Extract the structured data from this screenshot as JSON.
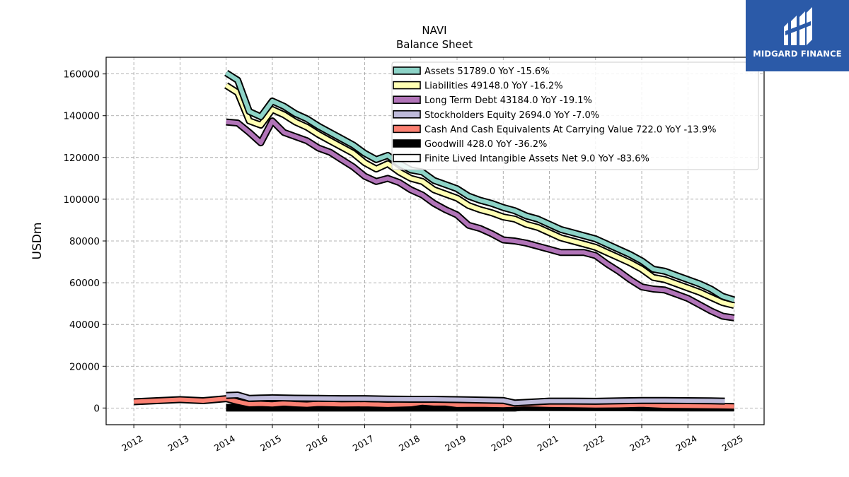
{
  "chart_data": {
    "type": "area",
    "title": "NAVI",
    "subtitle": "Balance  Sheet",
    "ylabel": "USDm",
    "xlabel": "",
    "ylim": [
      -8000,
      168000
    ],
    "xlim": [
      2011.4,
      2025.65
    ],
    "yticks": [
      0,
      20000,
      40000,
      60000,
      80000,
      100000,
      120000,
      140000,
      160000
    ],
    "ytick_labels": [
      "0",
      "20000",
      "40000",
      "60000",
      "80000",
      "100000",
      "120000",
      "140000",
      "160000"
    ],
    "xticks": [
      2012,
      2013,
      2014,
      2015,
      2016,
      2017,
      2018,
      2019,
      2020,
      2021,
      2022,
      2023,
      2024,
      2025
    ],
    "xtick_labels": [
      "2012",
      "2013",
      "2014",
      "2015",
      "2016",
      "2017",
      "2018",
      "2019",
      "2020",
      "2021",
      "2022",
      "2023",
      "2024",
      "2025"
    ],
    "grid": true,
    "legend_position": "top-right",
    "series": [
      {
        "name": "Assets",
        "legend": "Assets  51789.0 YoY -15.6%",
        "color": "#8dd3c7",
        "x": [
          2014.0,
          2014.25,
          2014.5,
          2014.75,
          2015.0,
          2015.25,
          2015.5,
          2015.75,
          2016.0,
          2016.25,
          2016.5,
          2016.75,
          2017.0,
          2017.25,
          2017.5,
          2017.75,
          2018.0,
          2018.25,
          2018.5,
          2018.75,
          2019.0,
          2019.25,
          2019.5,
          2019.75,
          2020.0,
          2020.25,
          2020.5,
          2020.75,
          2021.0,
          2021.25,
          2021.5,
          2021.75,
          2022.0,
          2022.25,
          2022.5,
          2022.75,
          2023.0,
          2023.25,
          2023.5,
          2023.75,
          2024.0,
          2024.25,
          2024.5,
          2024.75,
          2025.0
        ],
        "values": [
          160500,
          157000,
          142000,
          139500,
          147000,
          144500,
          141000,
          138500,
          135000,
          132000,
          129000,
          126000,
          122000,
          119000,
          121000,
          117000,
          114000,
          113000,
          109000,
          107000,
          105000,
          101500,
          99500,
          98000,
          96000,
          94500,
          92000,
          90500,
          88000,
          85500,
          84000,
          82500,
          81000,
          78500,
          76000,
          73500,
          70500,
          66500,
          65500,
          63500,
          61500,
          59500,
          57000,
          53500,
          51789
        ]
      },
      {
        "name": "Liabilities",
        "legend": "Liabilities  49148.0 YoY -16.2%",
        "color": "#ffffb3",
        "x": [
          2014.0,
          2014.25,
          2014.5,
          2014.75,
          2015.0,
          2015.25,
          2015.5,
          2015.75,
          2016.0,
          2016.25,
          2016.5,
          2016.75,
          2017.0,
          2017.25,
          2017.5,
          2017.75,
          2018.0,
          2018.25,
          2018.5,
          2018.75,
          2019.0,
          2019.25,
          2019.5,
          2019.75,
          2020.0,
          2020.25,
          2020.5,
          2020.75,
          2021.0,
          2021.25,
          2021.5,
          2021.75,
          2022.0,
          2022.25,
          2022.5,
          2022.75,
          2023.0,
          2023.25,
          2023.5,
          2023.75,
          2024.0,
          2024.25,
          2024.5,
          2024.75,
          2025.0
        ],
        "values": [
          154500,
          151000,
          137500,
          135500,
          143000,
          140500,
          137000,
          134500,
          131000,
          128000,
          125000,
          122000,
          117500,
          114500,
          117000,
          113000,
          110000,
          108500,
          104500,
          102500,
          100500,
          97000,
          95000,
          93500,
          91500,
          90500,
          88000,
          86500,
          84000,
          81500,
          80000,
          78500,
          77000,
          74500,
          72000,
          69500,
          66500,
          62500,
          61500,
          59500,
          57500,
          55500,
          53000,
          50500,
          49148
        ]
      },
      {
        "name": "Long Term Debt",
        "legend": "Long Term Debt  43184.0 YoY -19.1%",
        "color": "#bebada",
        "line_color": "#b174b8",
        "x": [
          2014.0,
          2014.25,
          2014.5,
          2014.75,
          2015.0,
          2015.25,
          2015.5,
          2015.75,
          2016.0,
          2016.25,
          2016.5,
          2016.75,
          2017.0,
          2017.25,
          2017.5,
          2017.75,
          2018.0,
          2018.25,
          2018.5,
          2018.75,
          2019.0,
          2019.25,
          2019.5,
          2019.75,
          2020.0,
          2020.25,
          2020.5,
          2020.75,
          2021.0,
          2021.25,
          2021.5,
          2021.75,
          2022.0,
          2022.25,
          2022.5,
          2022.75,
          2023.0,
          2023.25,
          2023.5,
          2023.75,
          2024.0,
          2024.25,
          2024.5,
          2024.75,
          2025.0
        ],
        "values": [
          137000,
          136500,
          132000,
          127000,
          137500,
          132000,
          130000,
          128000,
          124500,
          122500,
          119000,
          115500,
          111000,
          108500,
          110000,
          108000,
          104500,
          102000,
          98000,
          95000,
          92500,
          87500,
          86000,
          83500,
          80500,
          80000,
          79000,
          77500,
          76000,
          74500,
          74500,
          74500,
          73000,
          69000,
          65500,
          61500,
          58000,
          57000,
          56500,
          54500,
          52500,
          49500,
          46500,
          44000,
          43184
        ]
      },
      {
        "name": "Stockholders Equity",
        "legend": "Stockholders Equity  2694.0 YoY -7.0%",
        "color": "#bebada",
        "x": [
          2014.0,
          2014.25,
          2014.5,
          2014.75,
          2015.0,
          2015.5,
          2016.0,
          2016.5,
          2017.0,
          2017.5,
          2018.0,
          2018.5,
          2019.0,
          2019.5,
          2020.0,
          2020.25,
          2020.5,
          2021.0,
          2021.5,
          2022.0,
          2022.5,
          2023.0,
          2023.5,
          2024.0,
          2024.5,
          2024.8
        ],
        "values": [
          6000,
          6200,
          4600,
          4800,
          4900,
          4700,
          4600,
          4500,
          4500,
          4300,
          4200,
          4200,
          4000,
          3800,
          3600,
          2400,
          2700,
          3300,
          3300,
          3200,
          3400,
          3600,
          3600,
          3500,
          3400,
          3300
        ]
      },
      {
        "name": "Cash And Cash Equivalents At Carrying Value",
        "legend": "Cash And Cash Equivalents At Carrying Value  722.0 YoY -13.9%",
        "color": "#fb8072",
        "x": [
          2012.0,
          2012.5,
          2013.0,
          2013.5,
          2014.0,
          2014.25,
          2014.5,
          2014.75,
          2015.0,
          2015.25,
          2015.5,
          2015.75,
          2016.0,
          2016.5,
          2017.0,
          2017.5,
          2018.0,
          2018.25,
          2018.5,
          2018.75,
          2019.0,
          2019.5,
          2020.0,
          2020.5,
          2021.0,
          2021.5,
          2022.0,
          2022.5,
          2023.0,
          2023.5,
          2024.0,
          2024.5,
          2025.0
        ],
        "values": [
          3000,
          3500,
          4000,
          3500,
          4500,
          3000,
          1800,
          2000,
          1700,
          2200,
          1800,
          1600,
          2000,
          1700,
          1800,
          1500,
          1800,
          2600,
          2200,
          2200,
          1500,
          1600,
          1400,
          1800,
          1500,
          1400,
          1200,
          1300,
          1600,
          1100,
          1000,
          900,
          722
        ]
      },
      {
        "name": "Goodwill",
        "legend": "Goodwill  428.0 YoY -36.2%",
        "color": "#000000",
        "x": [
          2014.0,
          2015.0,
          2016.0,
          2017.0,
          2018.0,
          2019.0,
          2020.0,
          2020.25,
          2020.5,
          2021.0,
          2021.5,
          2022.0,
          2022.5,
          2023.0,
          2023.5,
          2024.0,
          2024.5,
          2025.0
        ],
        "values": [
          0,
          0,
          0,
          0,
          0,
          0,
          0,
          0,
          600,
          700,
          700,
          700,
          700,
          700,
          600,
          600,
          500,
          428
        ]
      },
      {
        "name": "Finite Lived Intangible Assets Net",
        "legend": "Finite Lived Intangible Assets Net  9.0 YoY -83.6%",
        "color": "#ffffff",
        "x": [
          2014.0,
          2015.0,
          2016.0,
          2017.0,
          2018.0,
          2019.0,
          2020.0,
          2021.0,
          2022.0,
          2023.0,
          2024.0,
          2025.0
        ],
        "values": [
          300,
          300,
          300,
          300,
          300,
          300,
          250,
          200,
          150,
          100,
          50,
          9
        ]
      }
    ]
  },
  "logo": {
    "text": "MIDGARD FINANCE",
    "color": "#2b5aa8"
  }
}
